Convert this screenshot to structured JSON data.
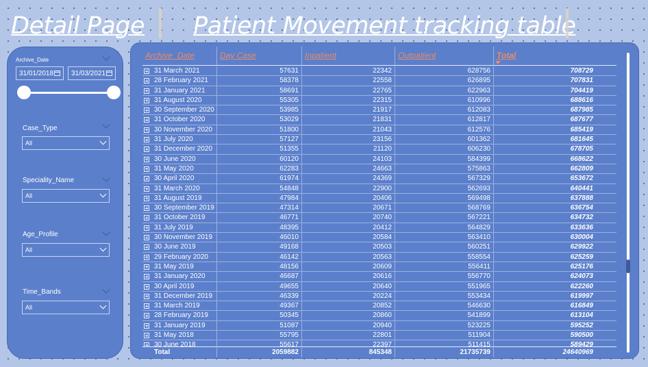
{
  "titles": {
    "detail": "Detail Page",
    "movement": "Patient Movement tracking table"
  },
  "slicers": {
    "archive_date": {
      "label": "Archive_Date",
      "start": "31/01/2018",
      "end": "31/03/2021"
    },
    "case_type": {
      "label": "Case_Type",
      "value": "All"
    },
    "speciality_name": {
      "label": "Speciality_Name",
      "value": "All"
    },
    "age_profile": {
      "label": "Age_Profile",
      "value": "All"
    },
    "time_bands": {
      "label": "Time_Bands",
      "value": "All"
    }
  },
  "table": {
    "columns": [
      "Archive_Date",
      "Day Case",
      "Inpatient",
      "Outpatient",
      "Total"
    ],
    "sorted_by": "Total",
    "rows": [
      [
        "31 March 2021",
        "57631",
        "22342",
        "628756",
        "708729"
      ],
      [
        "28 February 2021",
        "58378",
        "22558",
        "626895",
        "707831"
      ],
      [
        "31 January 2021",
        "58691",
        "22765",
        "622963",
        "704419"
      ],
      [
        "31 August 2020",
        "55305",
        "22315",
        "610996",
        "688616"
      ],
      [
        "30 September 2020",
        "53985",
        "21917",
        "612083",
        "687985"
      ],
      [
        "31 October 2020",
        "53029",
        "21831",
        "612817",
        "687677"
      ],
      [
        "30 November 2020",
        "51800",
        "21043",
        "612576",
        "685419"
      ],
      [
        "31 July 2020",
        "57127",
        "23156",
        "601362",
        "681645"
      ],
      [
        "31 December 2020",
        "51355",
        "21120",
        "606230",
        "678705"
      ],
      [
        "30 June 2020",
        "60120",
        "24103",
        "584399",
        "668622"
      ],
      [
        "31 May 2020",
        "62283",
        "24663",
        "575863",
        "662809"
      ],
      [
        "30 April 2020",
        "61974",
        "24369",
        "567329",
        "653672"
      ],
      [
        "31 March 2020",
        "54848",
        "22900",
        "562693",
        "640441"
      ],
      [
        "31 August 2019",
        "47984",
        "20406",
        "569498",
        "637888"
      ],
      [
        "30 September 2019",
        "47314",
        "20671",
        "568769",
        "636754"
      ],
      [
        "31 October 2019",
        "46771",
        "20740",
        "567221",
        "634732"
      ],
      [
        "31 July 2019",
        "48395",
        "20412",
        "564829",
        "633636"
      ],
      [
        "30 November 2019",
        "46010",
        "20584",
        "563410",
        "630004"
      ],
      [
        "30 June 2019",
        "49168",
        "20503",
        "560251",
        "629922"
      ],
      [
        "29 February 2020",
        "46142",
        "20563",
        "558554",
        "625259"
      ],
      [
        "31 May 2019",
        "48156",
        "20609",
        "556411",
        "625176"
      ],
      [
        "31 January 2020",
        "46687",
        "20616",
        "556770",
        "624073"
      ],
      [
        "30 April 2019",
        "49655",
        "20640",
        "551965",
        "622260"
      ],
      [
        "31 December 2019",
        "46339",
        "20224",
        "553434",
        "619997"
      ],
      [
        "31 March 2019",
        "49367",
        "20852",
        "546630",
        "616849"
      ],
      [
        "28 February 2019",
        "50345",
        "20860",
        "541899",
        "613104"
      ],
      [
        "31 January 2019",
        "51087",
        "20940",
        "523225",
        "595252"
      ],
      [
        "31 May 2018",
        "55795",
        "22801",
        "511904",
        "590500"
      ],
      [
        "30 June 2018",
        "55617",
        "22397",
        "511415",
        "589429"
      ]
    ],
    "total": {
      "label": "Total",
      "day_case": "2059882",
      "inpatient": "845348",
      "outpatient": "21735739",
      "total": "24640969"
    }
  },
  "colors": {
    "background": "#b4c6e7",
    "panel": "#5b7fcb",
    "header_text": "#e98c6a",
    "text": "#ffffff"
  }
}
